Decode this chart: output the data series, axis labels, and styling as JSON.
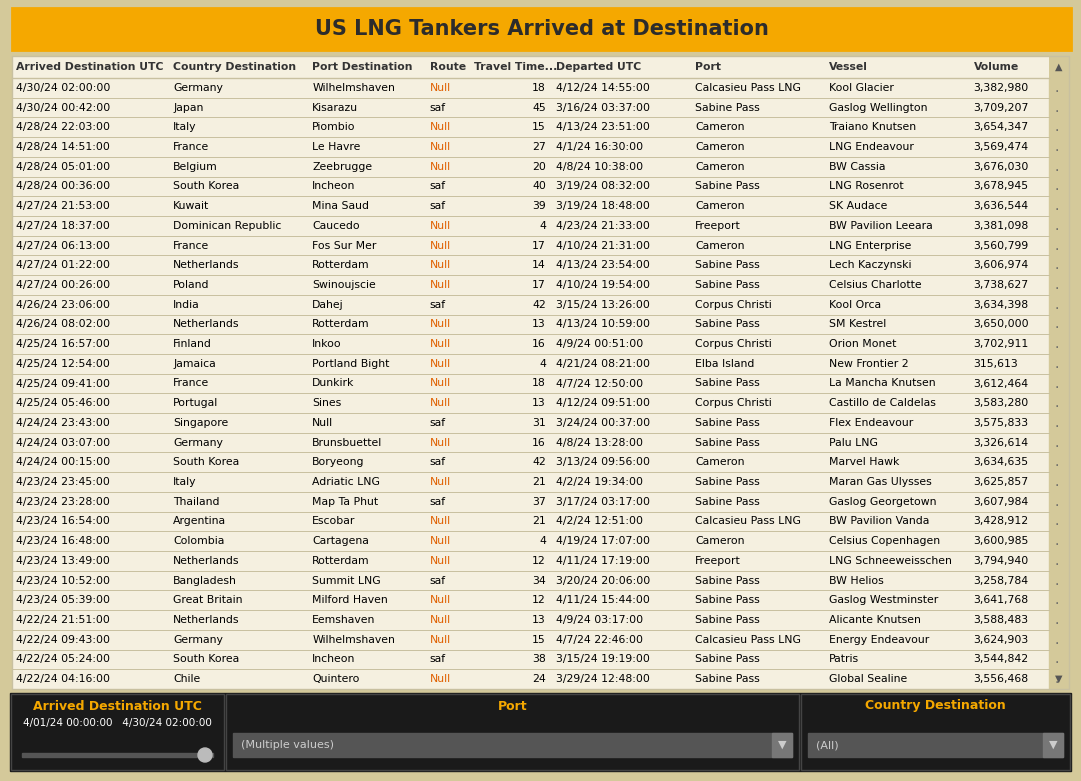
{
  "title": "US LNG Tankers Arrived at Destination",
  "title_bg": "#F5A800",
  "title_color": "#2C2C2C",
  "bg_color": "#D4C99A",
  "col_headers": [
    "Arrived Destination UTC",
    "Country Destination",
    "Port Destination",
    "Route",
    "Travel Time...",
    "Departed UTC",
    "Port",
    "Vessel",
    "Volume"
  ],
  "rows": [
    [
      "4/30/24 02:00:00",
      "Germany",
      "Wilhelmshaven",
      "Null",
      "18",
      "4/12/24 14:55:00",
      "Calcasieu Pass LNG",
      "Kool Glacier",
      "3,382,980"
    ],
    [
      "4/30/24 00:42:00",
      "Japan",
      "Kisarazu",
      "saf",
      "45",
      "3/16/24 03:37:00",
      "Sabine Pass",
      "Gaslog Wellington",
      "3,709,207"
    ],
    [
      "4/28/24 22:03:00",
      "Italy",
      "Piombio",
      "Null",
      "15",
      "4/13/24 23:51:00",
      "Cameron",
      "Traiano Knutsen",
      "3,654,347"
    ],
    [
      "4/28/24 14:51:00",
      "France",
      "Le Havre",
      "Null",
      "27",
      "4/1/24 16:30:00",
      "Cameron",
      "LNG Endeavour",
      "3,569,474"
    ],
    [
      "4/28/24 05:01:00",
      "Belgium",
      "Zeebrugge",
      "Null",
      "20",
      "4/8/24 10:38:00",
      "Cameron",
      "BW Cassia",
      "3,676,030"
    ],
    [
      "4/28/24 00:36:00",
      "South Korea",
      "Incheon",
      "saf",
      "40",
      "3/19/24 08:32:00",
      "Sabine Pass",
      "LNG Rosenrot",
      "3,678,945"
    ],
    [
      "4/27/24 21:53:00",
      "Kuwait",
      "Mina Saud",
      "saf",
      "39",
      "3/19/24 18:48:00",
      "Cameron",
      "SK Audace",
      "3,636,544"
    ],
    [
      "4/27/24 18:37:00",
      "Dominican Republic",
      "Caucedo",
      "Null",
      "4",
      "4/23/24 21:33:00",
      "Freeport",
      "BW Pavilion Leeara",
      "3,381,098"
    ],
    [
      "4/27/24 06:13:00",
      "France",
      "Fos Sur Mer",
      "Null",
      "17",
      "4/10/24 21:31:00",
      "Cameron",
      "LNG Enterprise",
      "3,560,799"
    ],
    [
      "4/27/24 01:22:00",
      "Netherlands",
      "Rotterdam",
      "Null",
      "14",
      "4/13/24 23:54:00",
      "Sabine Pass",
      "Lech Kaczynski",
      "3,606,974"
    ],
    [
      "4/27/24 00:26:00",
      "Poland",
      "Swinoujscie",
      "Null",
      "17",
      "4/10/24 19:54:00",
      "Sabine Pass",
      "Celsius Charlotte",
      "3,738,627"
    ],
    [
      "4/26/24 23:06:00",
      "India",
      "Dahej",
      "saf",
      "42",
      "3/15/24 13:26:00",
      "Corpus Christi",
      "Kool Orca",
      "3,634,398"
    ],
    [
      "4/26/24 08:02:00",
      "Netherlands",
      "Rotterdam",
      "Null",
      "13",
      "4/13/24 10:59:00",
      "Sabine Pass",
      "SM Kestrel",
      "3,650,000"
    ],
    [
      "4/25/24 16:57:00",
      "Finland",
      "Inkoo",
      "Null",
      "16",
      "4/9/24 00:51:00",
      "Corpus Christi",
      "Orion Monet",
      "3,702,911"
    ],
    [
      "4/25/24 12:54:00",
      "Jamaica",
      "Portland Bight",
      "Null",
      "4",
      "4/21/24 08:21:00",
      "Elba Island",
      "New Frontier 2",
      "315,613"
    ],
    [
      "4/25/24 09:41:00",
      "France",
      "Dunkirk",
      "Null",
      "18",
      "4/7/24 12:50:00",
      "Sabine Pass",
      "La Mancha Knutsen",
      "3,612,464"
    ],
    [
      "4/25/24 05:46:00",
      "Portugal",
      "Sines",
      "Null",
      "13",
      "4/12/24 09:51:00",
      "Corpus Christi",
      "Castillo de Caldelas",
      "3,583,280"
    ],
    [
      "4/24/24 23:43:00",
      "Singapore",
      "Null",
      "saf",
      "31",
      "3/24/24 00:37:00",
      "Sabine Pass",
      "Flex Endeavour",
      "3,575,833"
    ],
    [
      "4/24/24 03:07:00",
      "Germany",
      "Brunsbuettel",
      "Null",
      "16",
      "4/8/24 13:28:00",
      "Sabine Pass",
      "Palu LNG",
      "3,326,614"
    ],
    [
      "4/24/24 00:15:00",
      "South Korea",
      "Boryeong",
      "saf",
      "42",
      "3/13/24 09:56:00",
      "Cameron",
      "Marvel Hawk",
      "3,634,635"
    ],
    [
      "4/23/24 23:45:00",
      "Italy",
      "Adriatic LNG",
      "Null",
      "21",
      "4/2/24 19:34:00",
      "Sabine Pass",
      "Maran Gas Ulysses",
      "3,625,857"
    ],
    [
      "4/23/24 23:28:00",
      "Thailand",
      "Map Ta Phut",
      "saf",
      "37",
      "3/17/24 03:17:00",
      "Sabine Pass",
      "Gaslog Georgetown",
      "3,607,984"
    ],
    [
      "4/23/24 16:54:00",
      "Argentina",
      "Escobar",
      "Null",
      "21",
      "4/2/24 12:51:00",
      "Calcasieu Pass LNG",
      "BW Pavilion Vanda",
      "3,428,912"
    ],
    [
      "4/23/24 16:48:00",
      "Colombia",
      "Cartagena",
      "Null",
      "4",
      "4/19/24 17:07:00",
      "Cameron",
      "Celsius Copenhagen",
      "3,600,985"
    ],
    [
      "4/23/24 13:49:00",
      "Netherlands",
      "Rotterdam",
      "Null",
      "12",
      "4/11/24 17:19:00",
      "Freeport",
      "LNG Schneeweisschen",
      "3,794,940"
    ],
    [
      "4/23/24 10:52:00",
      "Bangladesh",
      "Summit LNG",
      "saf",
      "34",
      "3/20/24 20:06:00",
      "Sabine Pass",
      "BW Helios",
      "3,258,784"
    ],
    [
      "4/23/24 05:39:00",
      "Great Britain",
      "Milford Haven",
      "Null",
      "12",
      "4/11/24 15:44:00",
      "Sabine Pass",
      "Gaslog Westminster",
      "3,641,768"
    ],
    [
      "4/22/24 21:51:00",
      "Netherlands",
      "Eemshaven",
      "Null",
      "13",
      "4/9/24 03:17:00",
      "Sabine Pass",
      "Alicante Knutsen",
      "3,588,483"
    ],
    [
      "4/22/24 09:43:00",
      "Germany",
      "Wilhelmshaven",
      "Null",
      "15",
      "4/7/24 22:46:00",
      "Calcasieu Pass LNG",
      "Energy Endeavour",
      "3,624,903"
    ],
    [
      "4/22/24 05:24:00",
      "South Korea",
      "Incheon",
      "saf",
      "38",
      "3/15/24 19:19:00",
      "Sabine Pass",
      "Patris",
      "3,544,842"
    ],
    [
      "4/22/24 04:16:00",
      "Chile",
      "Quintero",
      "Null",
      "24",
      "3/29/24 12:48:00",
      "Sabine Pass",
      "Global Sealine",
      "3,556,468"
    ]
  ],
  "null_color": "#E06000",
  "saf_color": "#000000",
  "row_bg": "#F5F0E0",
  "header_bg": "#F5F0E0",
  "header_text_color": "#333333",
  "row_text_color": "#000000",
  "vessel_color": "#000000",
  "port_dest_color": "#000000",
  "sep_line_color": "#C8C0A0",
  "outer_border_color": "#C8C0A0",
  "scrollbar_bg": "#D4C99A",
  "scrollbar_track": "#C0B898",
  "bottom_panel_bg": "#1A1A1A",
  "bottom_title_color": "#F5A800",
  "bottom_text_color": "#FFFFFF",
  "bottom_left_title": "Arrived Destination UTC",
  "bottom_mid_title": "Port",
  "bottom_right_title": "Country Destination",
  "bottom_left_line1": "4/01/24 00:00:00   4/30/24 02:00:00",
  "bottom_mid_value": "(Multiple values)",
  "bottom_right_value": "(All)",
  "dropdown_bg": "#555555",
  "dropdown_text": "#CCCCCC"
}
